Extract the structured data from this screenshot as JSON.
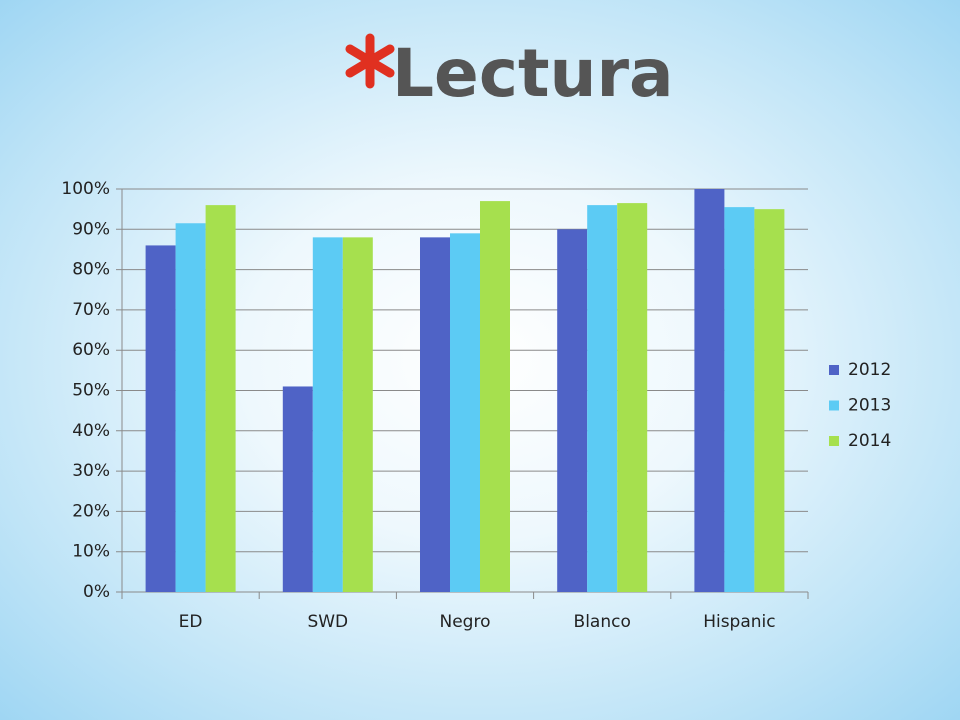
{
  "chart_data": {
    "type": "bar",
    "title": "Lectura",
    "categories": [
      "ED",
      "SWD",
      "Negro",
      "Blanco",
      "Hispanic"
    ],
    "series": [
      {
        "name": "2012",
        "color": "#4f63c6",
        "values": [
          86,
          51,
          88,
          90,
          100
        ]
      },
      {
        "name": "2013",
        "color": "#5ccbf4",
        "values": [
          91.5,
          88,
          89,
          96,
          95.5
        ]
      },
      {
        "name": "2014",
        "color": "#a6e04e",
        "values": [
          96,
          88,
          97,
          96.5,
          95
        ]
      }
    ],
    "ylim": [
      0,
      100
    ],
    "yticks": [
      {
        "value": 0,
        "label": "0%"
      },
      {
        "value": 10,
        "label": "10%"
      },
      {
        "value": 20,
        "label": "20%"
      },
      {
        "value": 30,
        "label": "30%"
      },
      {
        "value": 40,
        "label": "40%"
      },
      {
        "value": 50,
        "label": "50%"
      },
      {
        "value": 60,
        "label": "60%"
      },
      {
        "value": 70,
        "label": "70%"
      },
      {
        "value": 80,
        "label": "80%"
      },
      {
        "value": 90,
        "label": "90%"
      },
      {
        "value": 100,
        "label": "100%"
      }
    ],
    "grid": true,
    "legend": "right"
  }
}
